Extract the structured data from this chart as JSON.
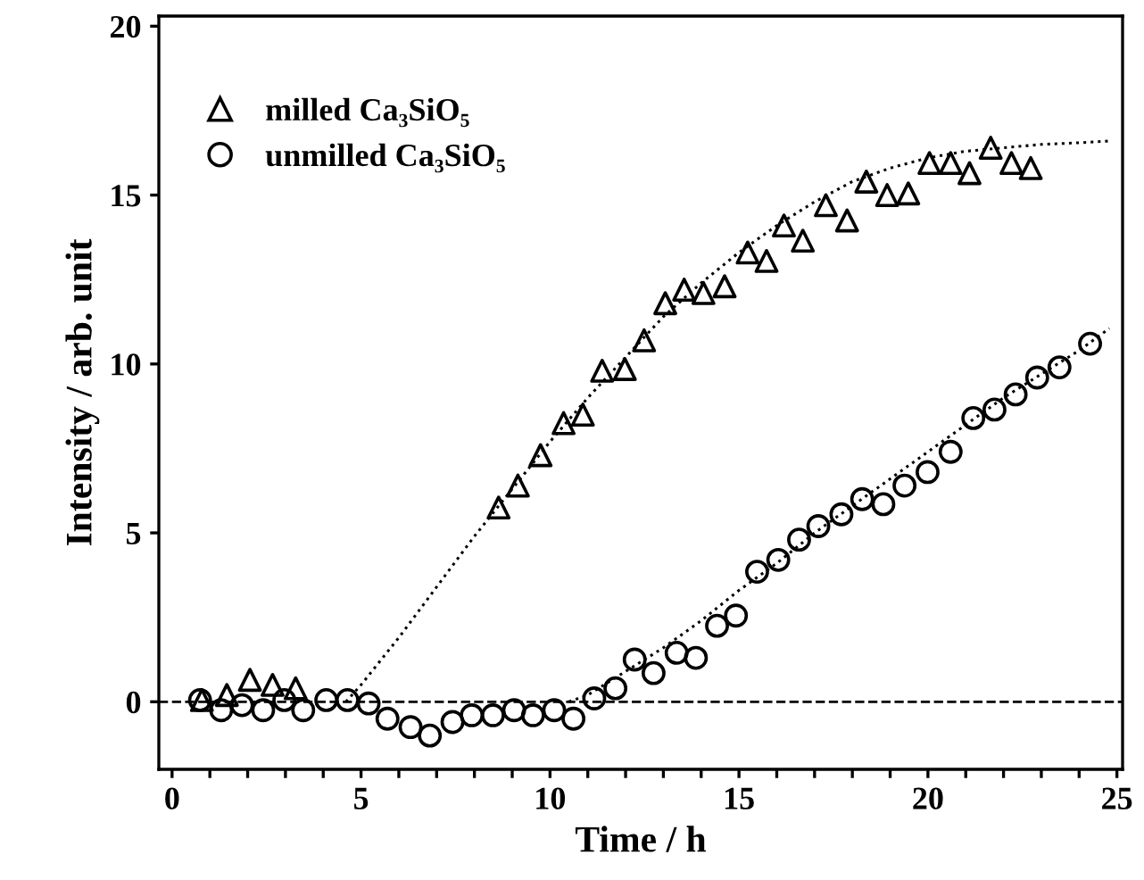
{
  "chart_data": {
    "type": "scatter",
    "xlabel": "Time / h",
    "ylabel": "Intensity / arb. unit",
    "xlim": [
      -0.35,
      25.15
    ],
    "ylim": [
      -2,
      20.3
    ],
    "xticks": [
      0,
      {
        "value": 1,
        "label": null
      },
      {
        "value": 2,
        "label": null
      },
      {
        "value": 3,
        "label": null
      },
      {
        "value": 4,
        "label": null
      },
      5,
      {
        "value": 6,
        "label": null
      },
      {
        "value": 7,
        "label": null
      },
      {
        "value": 8,
        "label": null
      },
      {
        "value": 9,
        "label": null
      },
      10,
      {
        "value": 11,
        "label": null
      },
      {
        "value": 12,
        "label": null
      },
      {
        "value": 13,
        "label": null
      },
      {
        "value": 14,
        "label": null
      },
      15,
      {
        "value": 16,
        "label": null
      },
      {
        "value": 17,
        "label": null
      },
      {
        "value": 18,
        "label": null
      },
      {
        "value": 19,
        "label": null
      },
      20,
      {
        "value": 21,
        "label": null
      },
      {
        "value": 22,
        "label": null
      },
      {
        "value": 23,
        "label": null
      },
      {
        "value": 24,
        "label": null
      },
      25
    ],
    "yticks": [
      0,
      5,
      10,
      15,
      20
    ],
    "grid": false,
    "legend": "top left",
    "ref_lines": [
      {
        "axis": "y",
        "value": 0,
        "label": null,
        "color": "#000000",
        "line_style": "dashed"
      }
    ],
    "series": [
      {
        "name": "milled Ca₃SiO₅",
        "marker": "triangle",
        "color": "#000000",
        "x": [
          0.79,
          1.45,
          2.06,
          2.66,
          3.27,
          8.64,
          9.15,
          9.75,
          10.36,
          10.87,
          11.38,
          11.98,
          12.49,
          13.05,
          13.55,
          14.06,
          14.62,
          15.23,
          15.73,
          16.19,
          16.69,
          17.3,
          17.86,
          18.37,
          18.92,
          19.48,
          20.04,
          20.6,
          21.1,
          21.66,
          22.21,
          22.72
        ],
        "values": [
          0.05,
          0.2,
          0.65,
          0.5,
          0.4,
          5.75,
          6.4,
          7.3,
          8.25,
          8.5,
          9.8,
          9.85,
          10.7,
          11.8,
          12.2,
          12.1,
          12.3,
          13.3,
          13.05,
          14.1,
          13.65,
          14.7,
          14.25,
          15.4,
          15.0,
          15.05,
          15.95,
          15.95,
          15.65,
          16.4,
          15.95,
          15.8
        ]
      },
      {
        "name": "unmilled Ca₃SiO₅",
        "marker": "circle",
        "color": "#000000",
        "x": [
          0.74,
          1.3,
          1.85,
          2.41,
          2.97,
          3.47,
          4.08,
          4.64,
          5.2,
          5.7,
          6.31,
          6.82,
          7.42,
          7.93,
          8.49,
          9.05,
          9.55,
          10.11,
          10.62,
          11.17,
          11.73,
          12.24,
          12.74,
          13.35,
          13.86,
          14.42,
          14.92,
          15.48,
          16.04,
          16.59,
          17.1,
          17.71,
          18.26,
          18.82,
          19.38,
          19.99,
          20.6,
          21.2,
          21.76,
          22.32,
          22.89,
          23.48,
          24.29
        ],
        "values": [
          0.05,
          -0.25,
          -0.1,
          -0.25,
          0.05,
          -0.25,
          0.05,
          0.05,
          -0.05,
          -0.5,
          -0.75,
          -1.0,
          -0.6,
          -0.4,
          -0.4,
          -0.25,
          -0.4,
          -0.25,
          -0.5,
          0.1,
          0.4,
          1.25,
          0.85,
          1.45,
          1.3,
          2.25,
          2.55,
          3.85,
          4.2,
          4.8,
          5.2,
          5.55,
          6.0,
          5.85,
          6.4,
          6.8,
          7.4,
          8.4,
          8.65,
          9.1,
          9.6,
          9.9,
          10.6
        ]
      },
      {
        "type": "line",
        "marker": "none",
        "line_style": "dotted",
        "color": "#000000",
        "x": [
          4.6,
          5,
          6,
          7,
          8,
          9,
          10,
          11,
          12,
          13,
          14,
          15,
          16,
          17,
          18,
          19,
          20,
          21,
          22,
          23,
          24,
          24.8
        ],
        "values": [
          0,
          0.5,
          1.9,
          3.4,
          4.9,
          6.3,
          7.7,
          9.0,
          10.2,
          11.4,
          12.4,
          13.3,
          14.1,
          14.8,
          15.4,
          15.8,
          16.1,
          16.3,
          16.4,
          16.5,
          16.55,
          16.6
        ]
      },
      {
        "type": "line",
        "marker": "none",
        "line_style": "dotted",
        "color": "#000000",
        "x": [
          10.5,
          11,
          12,
          13,
          14,
          15,
          16,
          17,
          18,
          19,
          20,
          21,
          22,
          23,
          24,
          24.8
        ],
        "values": [
          0,
          0.2,
          0.9,
          1.6,
          2.4,
          3.3,
          4.1,
          5.0,
          5.8,
          6.6,
          7.4,
          8.2,
          9.0,
          9.7,
          10.4,
          11.05
        ]
      }
    ]
  }
}
